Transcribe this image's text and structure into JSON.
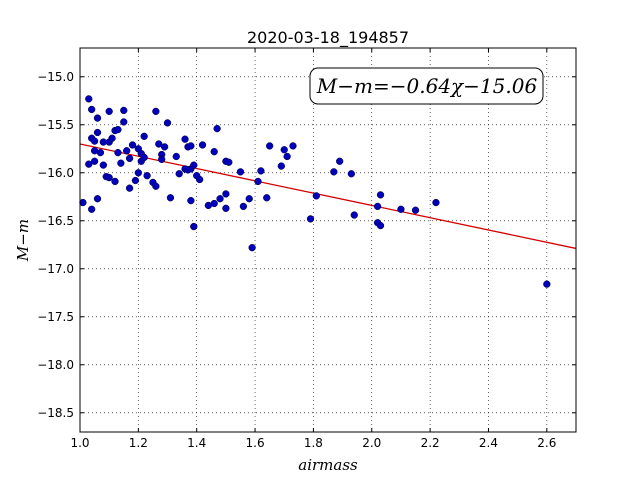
{
  "chart_data": {
    "type": "scatter",
    "title": "2020-03-18_194857",
    "xlabel": "airmass",
    "ylabel": "M−m",
    "xlim": [
      1.0,
      2.7
    ],
    "ylim": [
      -18.7,
      -14.7
    ],
    "y_inverted": true,
    "grid": true,
    "x_ticks": [
      "1.0",
      "1.2",
      "1.4",
      "1.6",
      "1.8",
      "2.0",
      "2.2",
      "2.4",
      "2.6"
    ],
    "x_tick_values": [
      1.0,
      1.2,
      1.4,
      1.6,
      1.8,
      2.0,
      2.2,
      2.4,
      2.6
    ],
    "y_ticks": [
      "−15.0",
      "−15.5",
      "−16.0",
      "−16.5",
      "−17.0",
      "−17.5",
      "−18.0",
      "−18.5"
    ],
    "y_tick_values": [
      -15.0,
      -15.5,
      -16.0,
      -16.5,
      -17.0,
      -17.5,
      -18.0,
      -18.5
    ],
    "annotation": "M−m=−0.64χ−15.06",
    "annotation_position": "top-right",
    "fit": {
      "slope": -0.64,
      "intercept": -15.06,
      "color": "#d40000"
    },
    "marker_color": "#0000b8",
    "points": [
      [
        1.01,
        -16.31
      ],
      [
        1.03,
        -15.23
      ],
      [
        1.04,
        -15.34
      ],
      [
        1.03,
        -15.91
      ],
      [
        1.04,
        -15.64
      ],
      [
        1.05,
        -15.67
      ],
      [
        1.04,
        -16.38
      ],
      [
        1.05,
        -15.88
      ],
      [
        1.05,
        -15.77
      ],
      [
        1.06,
        -15.58
      ],
      [
        1.06,
        -15.43
      ],
      [
        1.07,
        -15.79
      ],
      [
        1.06,
        -16.27
      ],
      [
        1.08,
        -15.92
      ],
      [
        1.08,
        -15.68
      ],
      [
        1.09,
        -16.04
      ],
      [
        1.1,
        -15.36
      ],
      [
        1.1,
        -16.05
      ],
      [
        1.1,
        -15.68
      ],
      [
        1.11,
        -15.64
      ],
      [
        1.12,
        -15.56
      ],
      [
        1.12,
        -16.09
      ],
      [
        1.13,
        -15.55
      ],
      [
        1.13,
        -15.79
      ],
      [
        1.14,
        -15.9
      ],
      [
        1.15,
        -15.35
      ],
      [
        1.15,
        -15.47
      ],
      [
        1.16,
        -15.77
      ],
      [
        1.17,
        -16.16
      ],
      [
        1.17,
        -15.85
      ],
      [
        1.18,
        -15.71
      ],
      [
        1.19,
        -16.08
      ],
      [
        1.2,
        -16.0
      ],
      [
        1.2,
        -15.75
      ],
      [
        1.21,
        -15.8
      ],
      [
        1.21,
        -15.88
      ],
      [
        1.22,
        -15.62
      ],
      [
        1.22,
        -15.84
      ],
      [
        1.23,
        -16.03
      ],
      [
        1.25,
        -16.1
      ],
      [
        1.26,
        -16.14
      ],
      [
        1.26,
        -15.36
      ],
      [
        1.27,
        -15.7
      ],
      [
        1.28,
        -15.81
      ],
      [
        1.28,
        -15.86
      ],
      [
        1.29,
        -15.73
      ],
      [
        1.3,
        -15.48
      ],
      [
        1.31,
        -16.26
      ],
      [
        1.33,
        -15.83
      ],
      [
        1.34,
        -16.01
      ],
      [
        1.36,
        -15.65
      ],
      [
        1.36,
        -15.96
      ],
      [
        1.37,
        -15.97
      ],
      [
        1.37,
        -15.73
      ],
      [
        1.38,
        -16.29
      ],
      [
        1.38,
        -15.72
      ],
      [
        1.38,
        -15.96
      ],
      [
        1.39,
        -16.56
      ],
      [
        1.39,
        -15.92
      ],
      [
        1.4,
        -16.03
      ],
      [
        1.41,
        -16.07
      ],
      [
        1.42,
        -15.71
      ],
      [
        1.44,
        -16.34
      ],
      [
        1.46,
        -16.32
      ],
      [
        1.46,
        -15.78
      ],
      [
        1.47,
        -15.54
      ],
      [
        1.48,
        -16.27
      ],
      [
        1.5,
        -15.88
      ],
      [
        1.5,
        -16.37
      ],
      [
        1.5,
        -16.22
      ],
      [
        1.51,
        -15.89
      ],
      [
        1.55,
        -15.99
      ],
      [
        1.56,
        -16.35
      ],
      [
        1.58,
        -16.27
      ],
      [
        1.59,
        -16.78
      ],
      [
        1.61,
        -16.09
      ],
      [
        1.62,
        -15.98
      ],
      [
        1.64,
        -16.26
      ],
      [
        1.65,
        -15.72
      ],
      [
        1.69,
        -15.93
      ],
      [
        1.7,
        -15.76
      ],
      [
        1.71,
        -15.83
      ],
      [
        1.73,
        -15.72
      ],
      [
        1.79,
        -16.48
      ],
      [
        1.81,
        -16.24
      ],
      [
        1.87,
        -15.99
      ],
      [
        1.89,
        -15.88
      ],
      [
        1.93,
        -16.01
      ],
      [
        1.94,
        -16.44
      ],
      [
        2.02,
        -16.35
      ],
      [
        2.02,
        -16.52
      ],
      [
        2.03,
        -16.55
      ],
      [
        2.03,
        -16.23
      ],
      [
        2.1,
        -16.38
      ],
      [
        2.15,
        -16.39
      ],
      [
        2.22,
        -16.31
      ],
      [
        2.6,
        -17.16
      ]
    ]
  }
}
